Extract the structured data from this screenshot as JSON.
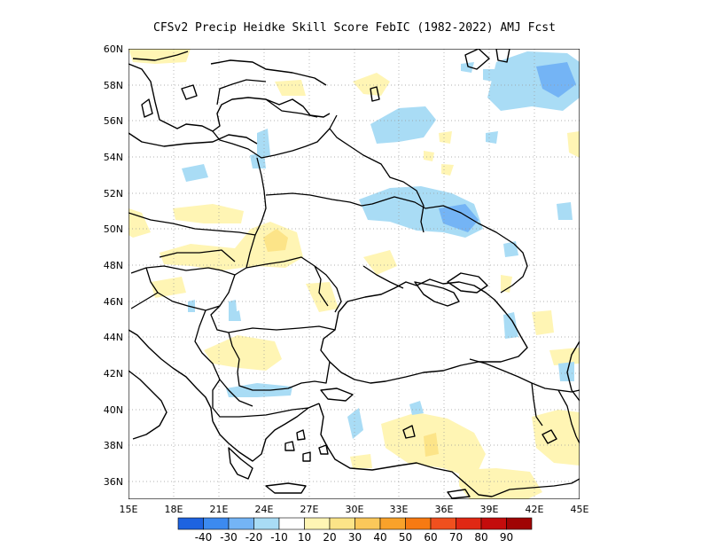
{
  "title": "CFSv2 Precip Heidke Skill Score FebIC (1982-2022) AMJ Fcst",
  "map": {
    "lon_range": [
      15,
      45
    ],
    "lat_range": [
      35,
      60
    ],
    "lon_ticks": [
      "15E",
      "18E",
      "21E",
      "24E",
      "27E",
      "30E",
      "33E",
      "36E",
      "39E",
      "42E",
      "45E"
    ],
    "lat_ticks": [
      "36N",
      "38N",
      "40N",
      "42N",
      "44N",
      "46N",
      "48N",
      "50N",
      "52N",
      "54N",
      "56N",
      "58N",
      "60N"
    ],
    "gridlines": "dotted"
  },
  "colorbar": {
    "colors": [
      "#1e63e0",
      "#3c8af0",
      "#74b4f5",
      "#a9dcf5",
      "#ffffff",
      "#fff5b4",
      "#fce488",
      "#fbc85a",
      "#f9a22a",
      "#f77a12",
      "#f0501e",
      "#e02814",
      "#c40c0c",
      "#a00404"
    ],
    "labels": [
      "-40",
      "-30",
      "-20",
      "-10",
      "10",
      "20",
      "30",
      "40",
      "50",
      "60",
      "70",
      "80",
      "90"
    ]
  }
}
